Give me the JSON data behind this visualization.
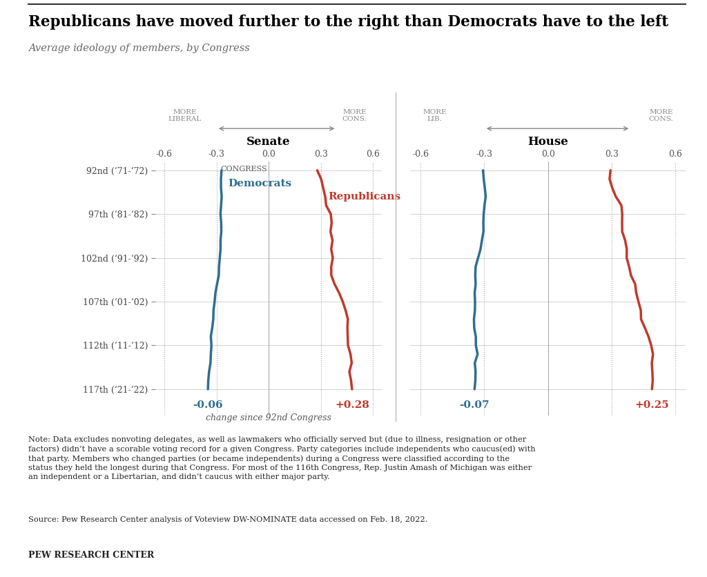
{
  "title": "Republicans have moved further to the right than Democrats have to the left",
  "subtitle": "Average ideology of members, by Congress",
  "senate_label": "Senate",
  "house_label": "House",
  "congress_labels": [
    "92nd (‘71-‘72)",
    "97th (‘81-‘82)",
    "102nd (‘91-‘92)",
    "107th (‘01-‘02)",
    "112th (‘11-‘12)",
    "117th (‘21-‘22)"
  ],
  "congress_tick_pos": [
    0,
    5,
    10,
    15,
    20,
    25
  ],
  "n_congresses": 26,
  "senate_dem_change": "-0.06",
  "senate_rep_change": "+0.28",
  "house_dem_change": "-0.07",
  "house_rep_change": "+0.25",
  "dem_color": "#2E6E8E",
  "rep_color": "#C0392B",
  "change_label": "change since 92nd Congress",
  "xlim": [
    -0.65,
    0.65
  ],
  "xticks": [
    -0.6,
    -0.3,
    0.0,
    0.3,
    0.6
  ],
  "xtick_labels": [
    "-0.6",
    "-0.3",
    "0.0",
    "0.3",
    "0.6"
  ],
  "note_line1": "Note: Data excludes nonvoting delegates, as well as lawmakers who officially served but (due to illness, resignation or other",
  "note_line2": "factors) didn’t have a scorable voting record for a given Congress. Party categories include independents who caucus(ed) with",
  "note_line3": "that party. Members who changed parties (or became independents) during a Congress were classified according to the",
  "note_line4": "status they held the longest during that Congress. For most of the 116th Congress, Rep. Justin Amash of Michigan was either",
  "note_line5": "an independent or a Libertarian, and didn’t caucus with either major party.",
  "source": "Source: Pew Research Center analysis of Voteview DW-NOMINATE data accessed on Feb. 18, 2022.",
  "footer": "PEW RESEARCH CENTER",
  "bg_color": "#FFFFFF"
}
